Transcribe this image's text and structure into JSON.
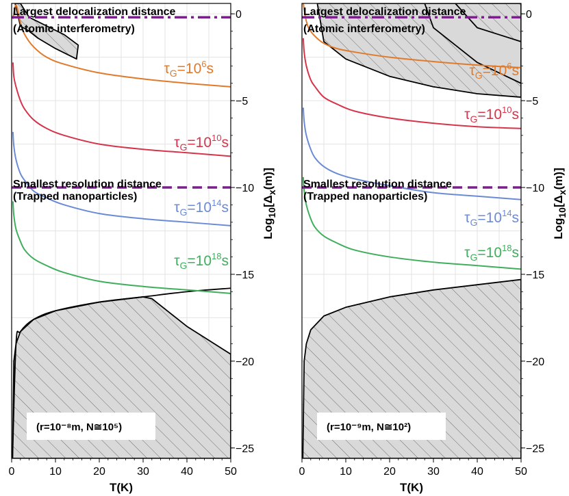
{
  "chart_data": [
    {
      "type": "line",
      "panel": "left",
      "xlabel": "T(K)",
      "ylabel": "Log10[Δx(m)]",
      "xlim": [
        0,
        50
      ],
      "ylim": [
        -25.6,
        0.6
      ],
      "xticks": [
        0,
        10,
        20,
        30,
        40,
        50
      ],
      "yticks": [
        0,
        -5,
        -10,
        -15,
        -20,
        -25
      ],
      "inset_text": "(r=10⁻⁸m, N≅10⁵)",
      "reference_lines": [
        {
          "name": "Largest delocalization distance (Atomic interferometry)",
          "y": -0.2,
          "style": "dash-dot",
          "color": "#7b1f8c"
        },
        {
          "name": "Smallest resolution distance (Trapped nanoparticles)",
          "y": -10,
          "style": "dashed",
          "color": "#7b1f8c"
        }
      ],
      "annotations": [
        "Largest delocalization distance",
        "(Atomic interferometry)",
        "Smallest resolution distance",
        "(Trapped nanoparticles)"
      ],
      "series": [
        {
          "name": "τG=10^6 s",
          "color": "#e07a2a",
          "label_exp": "6",
          "x": [
            0.3,
            1,
            2,
            3,
            5,
            8,
            12,
            20,
            30,
            40,
            50
          ],
          "y": [
            -0.3,
            0.5,
            -0.5,
            -1.2,
            -1.9,
            -2.5,
            -2.9,
            -3.4,
            -3.75,
            -4.0,
            -4.2
          ]
        },
        {
          "name": "τG=10^10 s",
          "color": "#d6344a",
          "label_exp": "10",
          "x": [
            0.3,
            0.5,
            1,
            2,
            3,
            5,
            8,
            12,
            20,
            30,
            40,
            50
          ],
          "y": [
            -2.8,
            -3.6,
            -4.2,
            -5.0,
            -5.5,
            -6.1,
            -6.6,
            -7.0,
            -7.5,
            -7.8,
            -8.0,
            -8.2
          ]
        },
        {
          "name": "τG=10^14 s",
          "color": "#6a8ad6",
          "label_exp": "14",
          "x": [
            0.3,
            0.5,
            1,
            2,
            3,
            5,
            8,
            12,
            20,
            30,
            40,
            50
          ],
          "y": [
            -6.8,
            -7.6,
            -8.4,
            -9.2,
            -9.6,
            -10.2,
            -10.6,
            -11.0,
            -11.5,
            -11.8,
            -12.0,
            -12.2
          ]
        },
        {
          "name": "τG=10^18 s",
          "color": "#3fae5c",
          "label_exp": "18",
          "x": [
            0.3,
            0.5,
            1,
            2,
            3,
            5,
            8,
            12,
            20,
            30,
            40,
            50
          ],
          "y": [
            -10.8,
            -11.6,
            -12.4,
            -13.1,
            -13.6,
            -14.1,
            -14.5,
            -14.9,
            -15.4,
            -15.7,
            -15.9,
            -16.1
          ]
        }
      ],
      "excluded_regions": [
        {
          "name": "top-left hatched",
          "boundary": {
            "x": [
              0.8,
              2,
              4,
              8,
              12,
              15.2,
              14.8,
              10,
              6,
              4,
              2,
              0.8
            ],
            "y": [
              0.6,
              0.6,
              -0.2,
              -0.7,
              -1.2,
              -1.8,
              -2.6,
              -2.0,
              -1.4,
              -1.0,
              -0.7,
              0.6
            ]
          }
        },
        {
          "name": "bottom hatched",
          "boundary": {
            "x": [
              0.2,
              0.5,
              1,
              2,
              5,
              10,
              20,
              30,
              32,
              36,
              40,
              45,
              50,
              50,
              0.2
            ],
            "y": [
              -25.6,
              -20.0,
              -19.0,
              -18.3,
              -17.6,
              -17.1,
              -16.6,
              -16.3,
              -16.4,
              -17.2,
              -18.0,
              -18.8,
              -19.6,
              -25.6,
              -25.6
            ]
          },
          "upper_envelope": {
            "x": [
              0.2,
              1,
              2,
              5,
              10,
              20,
              30,
              40,
              50
            ],
            "y": [
              -25.6,
              -19.0,
              -18.3,
              -17.6,
              -17.1,
              -16.6,
              -16.3,
              -16.0,
              -15.8
            ]
          }
        }
      ]
    },
    {
      "type": "line",
      "panel": "right",
      "xlabel": "T(K)",
      "ylabel": "Log10[Δx(m)]",
      "xlim": [
        0,
        50
      ],
      "ylim": [
        -25.6,
        0.6
      ],
      "xticks": [
        0,
        10,
        20,
        30,
        40,
        50
      ],
      "yticks": [
        0,
        -5,
        -10,
        -15,
        -20,
        -25
      ],
      "inset_text": "(r=10⁻⁹m, N≅10²)",
      "reference_lines": [
        {
          "name": "Largest delocalization distance (Atomic interferometry)",
          "y": -0.2,
          "style": "dash-dot",
          "color": "#7b1f8c"
        },
        {
          "name": "Smallest resolution distance (Trapped nanoparticles)",
          "y": -10,
          "style": "dashed",
          "color": "#7b1f8c"
        }
      ],
      "annotations": [
        "Largest delocalization distance",
        "(Atomic interferometry)",
        "Smallest resolution distance",
        "(Trapped nanoparticles)"
      ],
      "series": [
        {
          "name": "τG=10^6 s",
          "color": "#e07a2a",
          "label_exp": "6",
          "x": [
            0.3,
            0.8,
            1.5,
            3,
            5,
            8,
            12,
            20,
            30,
            40,
            50
          ],
          "y": [
            0.6,
            -0.2,
            -0.8,
            -1.3,
            -1.7,
            -2.0,
            -2.2,
            -2.5,
            -2.75,
            -2.95,
            -3.1
          ]
        },
        {
          "name": "τG=10^10 s",
          "color": "#d6344a",
          "label_exp": "10",
          "x": [
            0.3,
            0.5,
            1,
            2,
            3,
            5,
            8,
            12,
            20,
            30,
            40,
            50
          ],
          "y": [
            -1.4,
            -2.2,
            -3.0,
            -3.8,
            -4.2,
            -4.8,
            -5.2,
            -5.6,
            -6.0,
            -6.3,
            -6.5,
            -6.6
          ]
        },
        {
          "name": "τG=10^14 s",
          "color": "#6a8ad6",
          "label_exp": "14",
          "x": [
            0.3,
            0.5,
            1,
            2,
            3,
            5,
            8,
            12,
            20,
            30,
            40,
            50
          ],
          "y": [
            -5.4,
            -6.2,
            -7.0,
            -7.8,
            -8.3,
            -8.8,
            -9.2,
            -9.5,
            -9.9,
            -10.3,
            -10.5,
            -10.7
          ]
        },
        {
          "name": "τG=10^18 s",
          "color": "#3fae5c",
          "label_exp": "18",
          "x": [
            0.3,
            0.5,
            1,
            2,
            3,
            5,
            8,
            12,
            20,
            30,
            40,
            50
          ],
          "y": [
            -9.4,
            -10.2,
            -11.0,
            -11.8,
            -12.3,
            -12.8,
            -13.2,
            -13.6,
            -14.0,
            -14.3,
            -14.5,
            -14.7
          ]
        }
      ],
      "excluded_regions": [
        {
          "name": "top hatched",
          "boundary": {
            "x": [
              3.5,
              8,
              20,
              30,
              40,
              50,
              50,
              40,
              30,
              20,
              10,
              5,
              3.5
            ],
            "y": [
              0.6,
              0.6,
              0.6,
              0.6,
              0.6,
              0.6,
              -4.8,
              -4.6,
              -4.2,
              -3.6,
              -2.6,
              -1.6,
              0.6
            ]
          }
        },
        {
          "name": "top-right gray band",
          "boundary": {
            "x": [
              28,
              35,
              40,
              45,
              50,
              50,
              40,
              30,
              28
            ],
            "y": [
              0.6,
              0.6,
              -0.8,
              -1.2,
              -1.6,
              -4.0,
              -2.8,
              -0.8,
              0.6
            ]
          }
        },
        {
          "name": "bottom hatched",
          "boundary": {
            "x": [
              0.2,
              0.5,
              1,
              2,
              5,
              10,
              20,
              30,
              40,
              50,
              50,
              0.2
            ],
            "y": [
              -25.6,
              -20.0,
              -19.0,
              -18.2,
              -17.4,
              -16.9,
              -16.3,
              -15.9,
              -15.6,
              -15.3,
              -25.6,
              -25.6
            ]
          }
        }
      ]
    }
  ]
}
